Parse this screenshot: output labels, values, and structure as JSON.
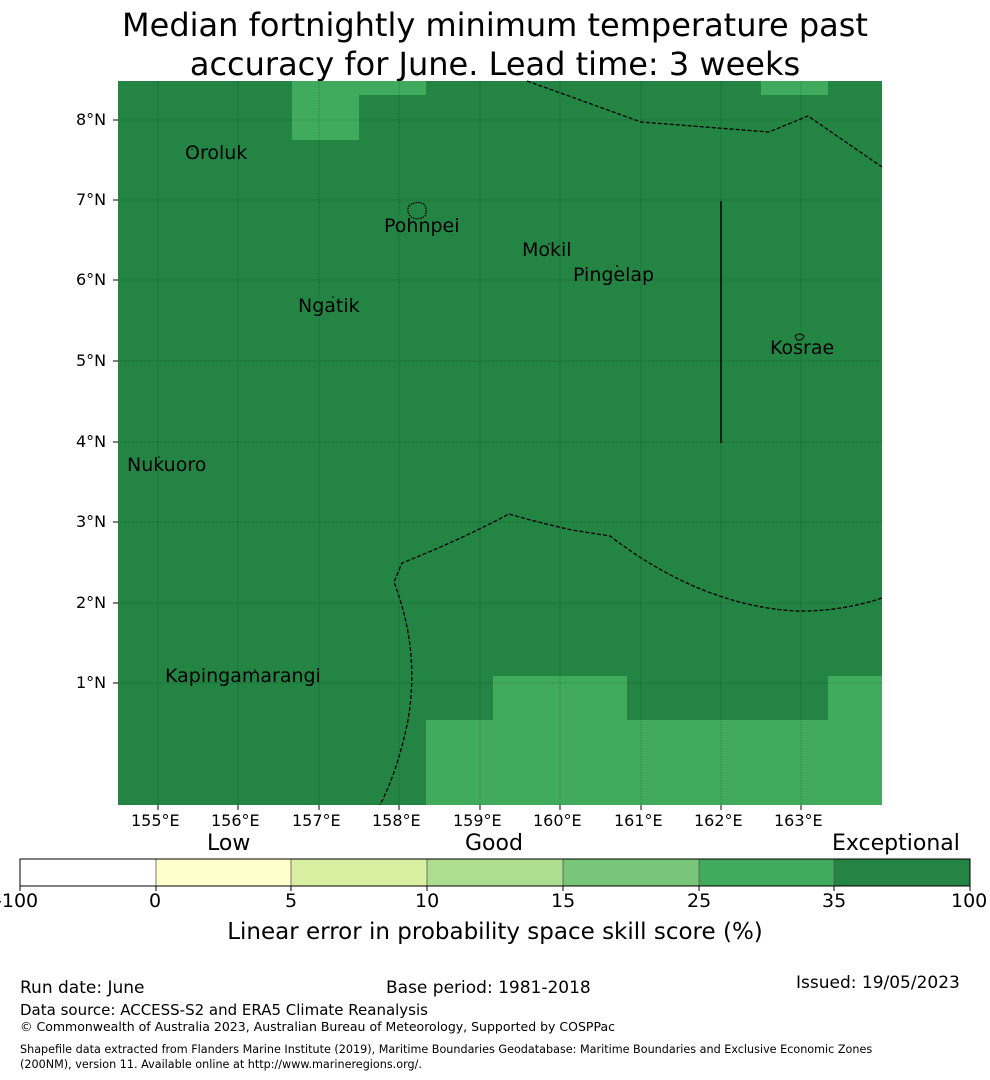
{
  "title": {
    "line1": "Median fortnightly minimum temperature past",
    "line2": "accuracy for June. Lead time: 3 weeks"
  },
  "map": {
    "lon_ticks": [
      "155°E",
      "156°E",
      "157°E",
      "158°E",
      "159°E",
      "160°E",
      "161°E",
      "162°E",
      "163°E"
    ],
    "lat_ticks": [
      "1°N",
      "2°N",
      "3°N",
      "4°N",
      "5°N",
      "6°N",
      "7°N",
      "8°N"
    ],
    "places": [
      {
        "name": "Oroluk"
      },
      {
        "name": "Pohnpei"
      },
      {
        "name": "Mokil"
      },
      {
        "name": "Pingelap"
      },
      {
        "name": "Ngatik"
      },
      {
        "name": "Kosrae"
      },
      {
        "name": "Nukuoro"
      },
      {
        "name": "Kapingamarangi"
      }
    ],
    "colors": {
      "exceptional": "#238443",
      "band_25_35": "#41ab5d",
      "boundary_line": "#000000"
    }
  },
  "colorbar": {
    "category_labels": {
      "low": "Low",
      "good": "Good",
      "exceptional": "Exceptional"
    },
    "ticks": [
      "-100",
      "0",
      "5",
      "10",
      "15",
      "25",
      "35",
      "100"
    ],
    "colors": [
      "#ffffff",
      "#ffffcc",
      "#d9f0a3",
      "#addd8e",
      "#78c679",
      "#41ab5d",
      "#238443"
    ],
    "label": "Linear error in probability space skill score (%)"
  },
  "footer": {
    "run_date": "Run date: June",
    "base_period": "Base period: 1981-2018",
    "issued": "Issued: 19/05/2023",
    "data_source": "Data source: ACCESS-S2 and ERA5 Climate Reanalysis",
    "copyright": "© Commonwealth of Australia 2023, Australian Bureau of Meteorology, Supported by COSPPac",
    "shapefile_line1": "Shapefile data extracted from Flanders Marine Institute (2019), Maritime Boundaries Geodatabase: Maritime Boundaries and Exclusive Economic Zones",
    "shapefile_line2": "(200NM), version 11. Available online at http://www.marineregions.org/."
  }
}
